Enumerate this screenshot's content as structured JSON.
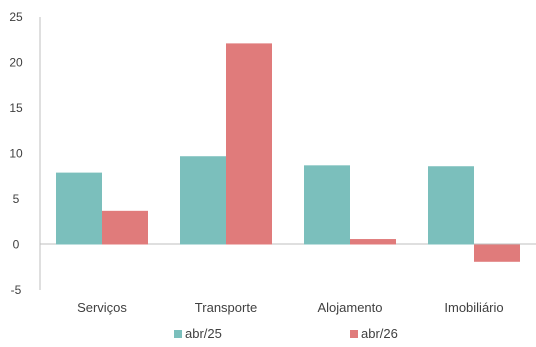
{
  "chart_data": {
    "type": "bar",
    "categories": [
      "Serviços",
      "Transporte",
      "Alojamento",
      "Imobiliário"
    ],
    "series": [
      {
        "name": "abr/25",
        "values": [
          7.9,
          9.7,
          8.7,
          8.6
        ],
        "color": "#7BBFBC"
      },
      {
        "name": "abr/26",
        "values": [
          3.7,
          22.1,
          0.6,
          -1.9
        ],
        "color": "#E07B7B"
      }
    ],
    "yticks": [
      "25",
      "20",
      "15",
      "10",
      "5",
      "0",
      "-5"
    ],
    "ylim": [
      -5,
      25
    ],
    "grid": false,
    "legend_position": "bottom"
  }
}
